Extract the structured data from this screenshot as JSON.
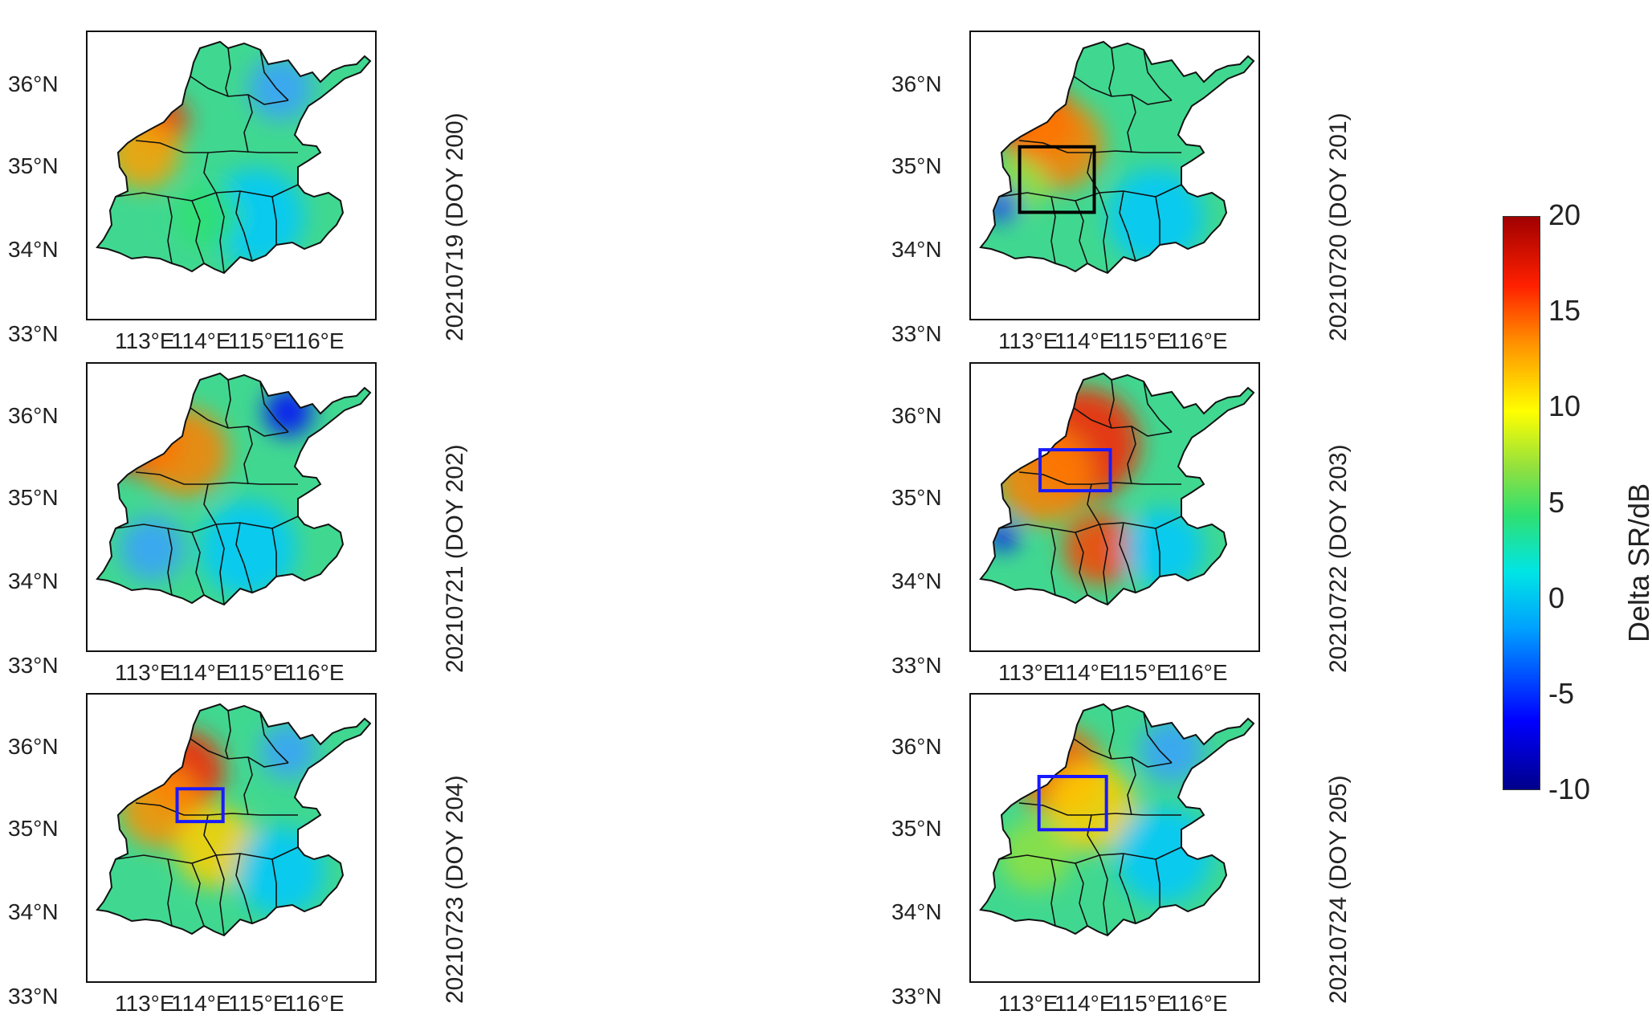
{
  "panels": [
    {
      "date_label": "20210719 (DOY 200)",
      "box": null
    },
    {
      "date_label": "20210720 (DOY 201)",
      "box": {
        "color": "#000000",
        "lon": [
          112.88,
          114.23
        ],
        "lat": [
          34.3,
          35.1
        ]
      }
    },
    {
      "date_label": "20210721 (DOY 202)",
      "box": null
    },
    {
      "date_label": "20210722 (DOY 203)",
      "box": {
        "color": "#1a1aff",
        "lon": [
          113.25,
          114.52
        ],
        "lat": [
          34.95,
          35.45
        ]
      }
    },
    {
      "date_label": "20210723 (DOY 204)",
      "box": {
        "color": "#1a1aff",
        "lon": [
          113.62,
          114.45
        ],
        "lat": [
          34.95,
          35.35
        ]
      }
    },
    {
      "date_label": "20210724 (DOY 205)",
      "box": {
        "color": "#1a1aff",
        "lon": [
          113.23,
          114.45
        ],
        "lat": [
          34.85,
          35.5
        ]
      }
    }
  ],
  "lat_labels": [
    "36°N",
    "35°N",
    "34°N",
    "33°N"
  ],
  "lon_labels": [
    "113°E",
    "114°E",
    "115°E",
    "116°E"
  ],
  "colorbar": {
    "title": "Delta SR/dB",
    "ticks": [
      "20",
      "15",
      "10",
      "5",
      "0",
      "-5",
      "-10"
    ],
    "min": -10,
    "max": 20
  }
}
